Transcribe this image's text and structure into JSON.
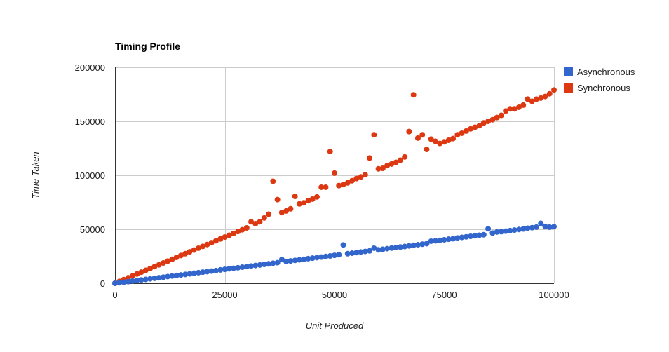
{
  "chart_data": {
    "type": "scatter",
    "title": "Timing Profile",
    "xlabel": "Unit Produced",
    "ylabel": "Time Taken",
    "xlim": [
      0,
      100000
    ],
    "ylim": [
      0,
      200000
    ],
    "x_ticks": [
      0,
      25000,
      50000,
      75000,
      100000
    ],
    "y_ticks": [
      0,
      50000,
      100000,
      150000,
      200000
    ],
    "x_tick_labels": [
      "0",
      "25000",
      "50000",
      "75000",
      "100000"
    ],
    "y_tick_labels": [
      "0",
      "50000",
      "100000",
      "150000",
      "200000"
    ],
    "grid": true,
    "legend_position": "right",
    "colors": {
      "Asynchronous": "#3366cc",
      "Synchronous": "#dc3912",
      "grid": "#cccccc",
      "axis": "#333333"
    },
    "series": [
      {
        "name": "Asynchronous",
        "points": [
          [
            0,
            0
          ],
          [
            1000,
            500
          ],
          [
            2000,
            1000
          ],
          [
            3000,
            1500
          ],
          [
            4000,
            2000
          ],
          [
            5000,
            2600
          ],
          [
            6000,
            3100
          ],
          [
            7000,
            3600
          ],
          [
            8000,
            4100
          ],
          [
            9000,
            4600
          ],
          [
            10000,
            5100
          ],
          [
            11000,
            5600
          ],
          [
            12000,
            6200
          ],
          [
            13000,
            6700
          ],
          [
            14000,
            7200
          ],
          [
            15000,
            7700
          ],
          [
            16000,
            8200
          ],
          [
            17000,
            8700
          ],
          [
            18000,
            9300
          ],
          [
            19000,
            9800
          ],
          [
            20000,
            10300
          ],
          [
            21000,
            10800
          ],
          [
            22000,
            11300
          ],
          [
            23000,
            11800
          ],
          [
            24000,
            12400
          ],
          [
            25000,
            12900
          ],
          [
            26000,
            13400
          ],
          [
            27000,
            13900
          ],
          [
            28000,
            14400
          ],
          [
            29000,
            14900
          ],
          [
            30000,
            15500
          ],
          [
            31000,
            16000
          ],
          [
            32000,
            16500
          ],
          [
            33000,
            17000
          ],
          [
            34000,
            17500
          ],
          [
            35000,
            18000
          ],
          [
            36000,
            18600
          ],
          [
            37000,
            19100
          ],
          [
            38000,
            22000
          ],
          [
            39000,
            20200
          ],
          [
            40000,
            20700
          ],
          [
            41000,
            21200
          ],
          [
            42000,
            21700
          ],
          [
            43000,
            22200
          ],
          [
            44000,
            22800
          ],
          [
            45000,
            23300
          ],
          [
            46000,
            23800
          ],
          [
            47000,
            24300
          ],
          [
            48000,
            24800
          ],
          [
            49000,
            25300
          ],
          [
            50000,
            25900
          ],
          [
            51000,
            26400
          ],
          [
            52000,
            35500
          ],
          [
            53000,
            27400
          ],
          [
            54000,
            27900
          ],
          [
            55000,
            28400
          ],
          [
            56000,
            29000
          ],
          [
            57000,
            29500
          ],
          [
            58000,
            30000
          ],
          [
            59000,
            32500
          ],
          [
            60000,
            31000
          ],
          [
            61000,
            31500
          ],
          [
            62000,
            32100
          ],
          [
            63000,
            32600
          ],
          [
            64000,
            33100
          ],
          [
            65000,
            33600
          ],
          [
            66000,
            34100
          ],
          [
            67000,
            34600
          ],
          [
            68000,
            35200
          ],
          [
            69000,
            35700
          ],
          [
            70000,
            36200
          ],
          [
            71000,
            36700
          ],
          [
            72000,
            39000
          ],
          [
            73000,
            39300
          ],
          [
            74000,
            39800
          ],
          [
            75000,
            40300
          ],
          [
            76000,
            40800
          ],
          [
            77000,
            41300
          ],
          [
            78000,
            42000
          ],
          [
            79000,
            42500
          ],
          [
            80000,
            43000
          ],
          [
            81000,
            43500
          ],
          [
            82000,
            44000
          ],
          [
            83000,
            44500
          ],
          [
            84000,
            45000
          ],
          [
            85000,
            50500
          ],
          [
            86000,
            46500
          ],
          [
            87000,
            47500
          ],
          [
            88000,
            47800
          ],
          [
            89000,
            48300
          ],
          [
            90000,
            48800
          ],
          [
            91000,
            49300
          ],
          [
            92000,
            49800
          ],
          [
            93000,
            50300
          ],
          [
            94000,
            51000
          ],
          [
            95000,
            51500
          ],
          [
            96000,
            52000
          ],
          [
            97000,
            55500
          ],
          [
            98000,
            52700
          ],
          [
            99000,
            52000
          ],
          [
            100000,
            52500
          ]
        ]
      },
      {
        "name": "Synchronous",
        "points": [
          [
            0,
            0
          ],
          [
            1000,
            1700
          ],
          [
            2000,
            3400
          ],
          [
            3000,
            5100
          ],
          [
            4000,
            6800
          ],
          [
            5000,
            8600
          ],
          [
            6000,
            10300
          ],
          [
            7000,
            12000
          ],
          [
            8000,
            13700
          ],
          [
            9000,
            15400
          ],
          [
            10000,
            17100
          ],
          [
            11000,
            18800
          ],
          [
            12000,
            20500
          ],
          [
            13000,
            22200
          ],
          [
            14000,
            24000
          ],
          [
            15000,
            25700
          ],
          [
            16000,
            27400
          ],
          [
            17000,
            29100
          ],
          [
            18000,
            30800
          ],
          [
            19000,
            32500
          ],
          [
            20000,
            34200
          ],
          [
            21000,
            35900
          ],
          [
            22000,
            37600
          ],
          [
            23000,
            39400
          ],
          [
            24000,
            41100
          ],
          [
            25000,
            42800
          ],
          [
            26000,
            44500
          ],
          [
            27000,
            46200
          ],
          [
            28000,
            47900
          ],
          [
            29000,
            49600
          ],
          [
            30000,
            51300
          ],
          [
            31000,
            57000
          ],
          [
            32000,
            55200
          ],
          [
            33000,
            57000
          ],
          [
            34000,
            60500
          ],
          [
            35000,
            64000
          ],
          [
            36000,
            94500
          ],
          [
            37000,
            77500
          ],
          [
            38000,
            65500
          ],
          [
            39000,
            67000
          ],
          [
            40000,
            69000
          ],
          [
            41000,
            80500
          ],
          [
            42000,
            73500
          ],
          [
            43000,
            74500
          ],
          [
            44000,
            76500
          ],
          [
            45000,
            78000
          ],
          [
            46000,
            80000
          ],
          [
            47000,
            89000
          ],
          [
            48000,
            89000
          ],
          [
            49000,
            122000
          ],
          [
            50000,
            102000
          ],
          [
            51000,
            90500
          ],
          [
            52000,
            91500
          ],
          [
            53000,
            93000
          ],
          [
            54000,
            95000
          ],
          [
            55000,
            97000
          ],
          [
            56000,
            98500
          ],
          [
            57000,
            100500
          ],
          [
            58000,
            116000
          ],
          [
            59000,
            137500
          ],
          [
            60000,
            106000
          ],
          [
            61000,
            106500
          ],
          [
            62000,
            109000
          ],
          [
            63000,
            110500
          ],
          [
            64000,
            112000
          ],
          [
            65000,
            114000
          ],
          [
            66000,
            117000
          ],
          [
            67000,
            140500
          ],
          [
            68000,
            174500
          ],
          [
            69000,
            134500
          ],
          [
            70000,
            137500
          ],
          [
            71000,
            124000
          ],
          [
            72000,
            133500
          ],
          [
            73000,
            131500
          ],
          [
            74000,
            129500
          ],
          [
            75000,
            131000
          ],
          [
            76000,
            132500
          ],
          [
            77000,
            134000
          ],
          [
            78000,
            137500
          ],
          [
            79000,
            139000
          ],
          [
            80000,
            141000
          ],
          [
            81000,
            143000
          ],
          [
            82000,
            144500
          ],
          [
            83000,
            146000
          ],
          [
            84000,
            148500
          ],
          [
            85000,
            150000
          ],
          [
            86000,
            151500
          ],
          [
            87000,
            153500
          ],
          [
            88000,
            155500
          ],
          [
            89000,
            159500
          ],
          [
            90000,
            161500
          ],
          [
            91000,
            161500
          ],
          [
            92000,
            163000
          ],
          [
            93000,
            165000
          ],
          [
            94000,
            170500
          ],
          [
            95000,
            168500
          ],
          [
            96000,
            170500
          ],
          [
            97000,
            171500
          ],
          [
            98000,
            173000
          ],
          [
            99000,
            175500
          ],
          [
            100000,
            179000
          ]
        ]
      }
    ]
  }
}
